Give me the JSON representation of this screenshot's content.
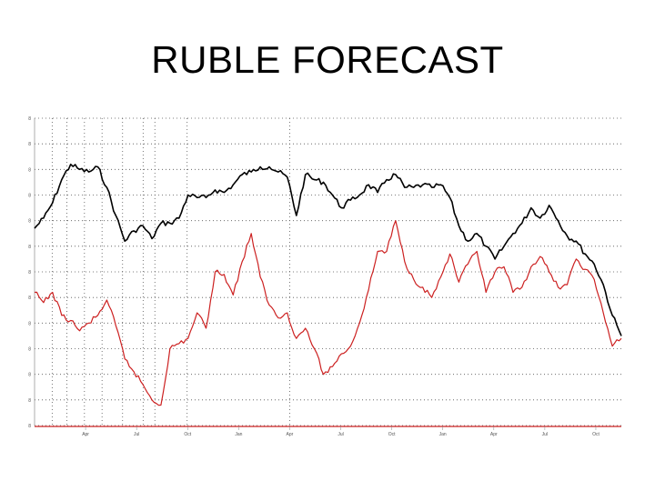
{
  "slide": {
    "title": "RUBLE FORECAST"
  },
  "chart_data": {
    "type": "line",
    "title": "RUBLE FORECAST",
    "xlabel": "",
    "ylabel": "",
    "x_tick_labels": [
      "Apr",
      "Jul",
      "Oct",
      "Jan",
      "Apr",
      "Jul",
      "Oct",
      "Jan",
      "Apr",
      "Jul",
      "Oct"
    ],
    "y_tick_labels": [
      "8",
      "8",
      "8",
      "8",
      "8",
      "8",
      "8",
      "8",
      "8",
      "8",
      "8",
      "8",
      "8"
    ],
    "xlim": [
      0,
      130
    ],
    "ylim": [
      0,
      12
    ],
    "grid": true,
    "legend": "none",
    "colors": {
      "black_series": "#000000",
      "red_series": "#cc2020",
      "axis": "#cc2020",
      "grid": "#555555"
    },
    "series": [
      {
        "color": "#000000",
        "x": [
          0,
          2,
          4,
          6,
          8,
          10,
          12,
          14,
          16,
          18,
          20,
          22,
          24,
          26,
          28,
          30,
          32,
          34,
          36,
          38,
          40,
          42,
          44,
          46,
          48,
          50,
          52,
          54,
          56,
          58,
          60,
          62,
          64,
          66,
          68,
          70,
          72,
          74,
          76,
          78,
          80,
          82,
          84,
          86,
          88,
          90,
          92,
          94,
          96,
          98,
          100,
          102,
          104,
          106,
          108,
          110,
          112,
          114,
          116,
          118,
          120,
          122,
          124,
          126,
          128,
          130
        ],
        "values": [
          7.7,
          8.1,
          8.7,
          9.6,
          10.2,
          10.0,
          9.9,
          10.1,
          9.3,
          8.2,
          7.2,
          7.6,
          7.8,
          7.3,
          7.9,
          7.9,
          8.1,
          9.0,
          8.9,
          8.9,
          9.2,
          9.1,
          9.4,
          9.8,
          9.9,
          10.1,
          10.1,
          9.9,
          9.7,
          8.2,
          9.8,
          9.6,
          9.5,
          9.0,
          8.5,
          8.8,
          9.0,
          9.4,
          9.1,
          9.6,
          9.8,
          9.3,
          9.3,
          9.4,
          9.3,
          9.4,
          8.9,
          7.8,
          7.2,
          7.5,
          7.0,
          6.5,
          7.0,
          7.5,
          7.9,
          8.5,
          8.1,
          8.6,
          8.0,
          7.4,
          7.2,
          6.7,
          6.3,
          5.5,
          4.3,
          3.5
        ]
      },
      {
        "color": "#cc2020",
        "x": [
          0,
          2,
          4,
          6,
          8,
          10,
          12,
          14,
          16,
          18,
          20,
          22,
          24,
          26,
          28,
          30,
          32,
          34,
          36,
          38,
          40,
          42,
          44,
          46,
          48,
          50,
          52,
          54,
          56,
          58,
          60,
          62,
          64,
          66,
          68,
          70,
          72,
          74,
          76,
          78,
          80,
          82,
          84,
          86,
          88,
          90,
          92,
          94,
          96,
          98,
          100,
          102,
          104,
          106,
          108,
          110,
          112,
          114,
          116,
          118,
          120,
          122,
          124,
          126,
          128,
          130
        ],
        "values": [
          5.2,
          4.8,
          5.2,
          4.3,
          4.1,
          3.7,
          4.0,
          4.3,
          4.9,
          3.9,
          2.6,
          2.1,
          1.6,
          1.0,
          0.8,
          3.0,
          3.2,
          3.4,
          4.4,
          3.8,
          6.0,
          5.9,
          5.1,
          6.4,
          7.5,
          5.8,
          4.7,
          4.2,
          4.4,
          3.4,
          3.8,
          3.0,
          2.0,
          2.3,
          2.8,
          3.1,
          4.0,
          5.3,
          6.8,
          6.8,
          8.0,
          6.4,
          5.7,
          5.4,
          5.0,
          5.8,
          6.7,
          5.6,
          6.3,
          6.8,
          5.2,
          6.0,
          6.2,
          5.2,
          5.4,
          6.2,
          6.6,
          6.0,
          5.4,
          5.5,
          6.5,
          6.1,
          5.7,
          4.4,
          3.1,
          3.4
        ]
      }
    ]
  }
}
